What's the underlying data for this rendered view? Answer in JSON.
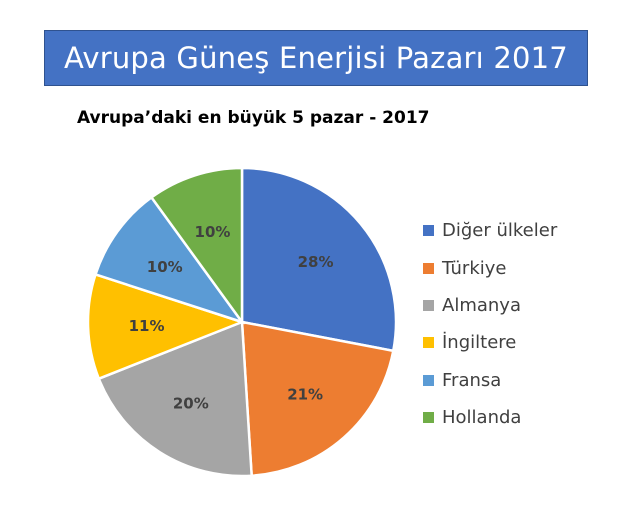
{
  "header": {
    "title": "Avrupa Güneş Enerjisi Pazarı 2017"
  },
  "chart_data": {
    "type": "pie",
    "title": "Avrupa’daki en büyük 5 pazar - 2017",
    "categories": [
      "Diğer ülkeler",
      "Türkiye",
      "Almanya",
      "İngiltere",
      "Fransa",
      "Hollanda"
    ],
    "values": [
      28,
      21,
      20,
      11,
      10,
      10
    ],
    "labels": [
      "28%",
      "21%",
      "20%",
      "11%",
      "10%",
      "10%"
    ],
    "colors": [
      "#4472c4",
      "#ed7d31",
      "#a5a5a5",
      "#ffc000",
      "#5b9bd5",
      "#70ad47"
    ],
    "legend_position": "right"
  }
}
